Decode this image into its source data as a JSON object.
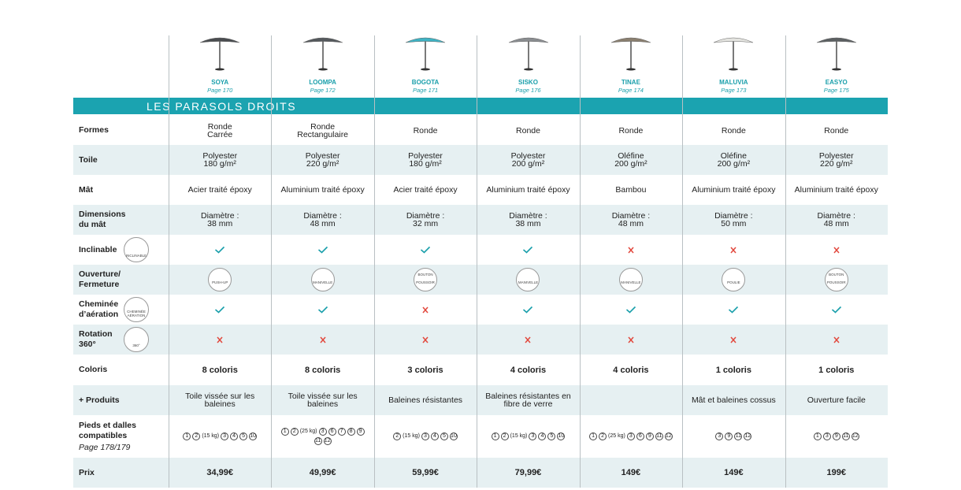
{
  "section_title": "LES PARASOLS DROITS",
  "products": [
    {
      "name": "SOYA",
      "page": "Page 170",
      "canopy_color": "#4a4d50"
    },
    {
      "name": "LOOMPA",
      "page": "Page 172",
      "canopy_color": "#55595d"
    },
    {
      "name": "BOGOTA",
      "page": "Page 171",
      "canopy_color": "#3fb3c4"
    },
    {
      "name": "SISKO",
      "page": "Page 176",
      "canopy_color": "#8a8d90"
    },
    {
      "name": "TINAE",
      "page": "Page 174",
      "canopy_color": "#8a7f6f"
    },
    {
      "name": "MALUVIA",
      "page": "Page 173",
      "canopy_color": "#e4e4e0"
    },
    {
      "name": "EASYO",
      "page": "Page 175",
      "canopy_color": "#5c6062"
    }
  ],
  "rows": [
    {
      "label": "Formes",
      "kind": "text",
      "cells": [
        "Ronde\nCarrée",
        "Ronde\nRectangulaire",
        "Ronde",
        "Ronde",
        "Ronde",
        "Ronde",
        "Ronde"
      ]
    },
    {
      "label": "Toile",
      "kind": "text",
      "cells": [
        "Polyester\n180 g/m²",
        "Polyester\n220 g/m²",
        "Polyester\n180 g/m²",
        "Polyester\n200 g/m²",
        "Oléfine\n200 g/m²",
        "Oléfine\n200 g/m²",
        "Polyester\n220 g/m²"
      ]
    },
    {
      "label": "Mât",
      "kind": "text",
      "cells": [
        "Acier traité époxy",
        "Aluminium traité époxy",
        "Acier traité époxy",
        "Aluminium traité époxy",
        "Bambou",
        "Aluminium traité époxy",
        "Aluminium traité époxy"
      ]
    },
    {
      "label": "Dimensions\ndu mât",
      "kind": "text",
      "cells": [
        "Diamètre :\n38 mm",
        "Diamètre :\n48 mm",
        "Diamètre :\n32 mm",
        "Diamètre :\n38 mm",
        "Diamètre :\n48 mm",
        "Diamètre :\n50 mm",
        "Diamètre :\n48 mm"
      ]
    },
    {
      "label": "Inclinable",
      "label_icon": "INCLINABLE",
      "kind": "check",
      "cells": [
        true,
        true,
        true,
        true,
        false,
        false,
        false
      ]
    },
    {
      "label": "Ouverture/\nFermeture",
      "kind": "icon",
      "cells": [
        "PUSH-UP",
        "MANIVELLE",
        "BOUTON POUSSOIR",
        "MANIVELLE",
        "MANIVELLE",
        "POULIE",
        "BOUTON POUSSOIR"
      ]
    },
    {
      "label": "Cheminée\nd’aération",
      "label_icon": "CHEMINÉE AÉRATION",
      "kind": "check",
      "cells": [
        true,
        true,
        false,
        true,
        true,
        true,
        true
      ]
    },
    {
      "label": "Rotation\n360°",
      "label_icon": "360°",
      "kind": "check",
      "cells": [
        false,
        false,
        false,
        false,
        false,
        false,
        false
      ]
    },
    {
      "label": "Coloris",
      "kind": "bold",
      "cells": [
        "8 coloris",
        "8 coloris",
        "3 coloris",
        "4 coloris",
        "4 coloris",
        "1 coloris",
        "1 coloris"
      ]
    },
    {
      "label": "+ Produits",
      "kind": "text",
      "cells": [
        "Toile vissée sur les\nbaleines",
        "Toile vissée sur les\nbaleines",
        "Baleines résistantes",
        "Baleines résistantes en\nfibre de verre",
        null,
        "Mât et baleines cossus",
        "Ouverture facile"
      ]
    },
    {
      "label": "Pieds et dalles\ncompatibles",
      "sub": "Page 178/179",
      "kind": "circles",
      "cells": [
        [
          "1",
          "2",
          "(15 kg)",
          "3",
          "4",
          "5",
          "10"
        ],
        [
          "1",
          "2",
          "(25 kg)",
          "3",
          "6",
          "7",
          "8",
          "9",
          "11",
          "12"
        ],
        [
          "2",
          "(15 kg)",
          "3",
          "4",
          "5",
          "10"
        ],
        [
          "1",
          "2",
          "(15 kg)",
          "3",
          "4",
          "5",
          "10"
        ],
        [
          "1",
          "2",
          "(25 kg)",
          "3",
          "6",
          "9",
          "11",
          "12"
        ],
        [
          "3",
          "9",
          "11",
          "12"
        ],
        [
          "1",
          "3",
          "9",
          "11",
          "12"
        ]
      ]
    },
    {
      "label": "Prix",
      "kind": "bold",
      "cells": [
        "34,99€",
        "49,99€",
        "59,99€",
        "79,99€",
        "149€",
        "149€",
        "199€"
      ]
    }
  ]
}
